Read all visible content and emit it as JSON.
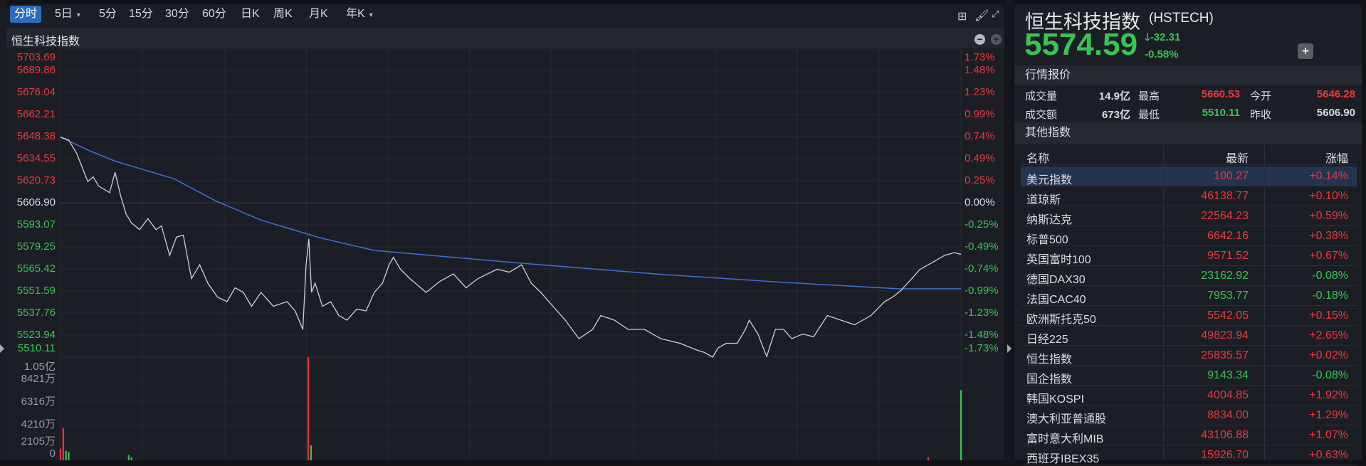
{
  "toolbar": {
    "timeframes": [
      {
        "label": "分时",
        "active": true
      },
      {
        "label": "5日",
        "dropdown": true
      },
      {
        "label": "5分"
      },
      {
        "label": "15分"
      },
      {
        "label": "30分"
      },
      {
        "label": "60分"
      },
      {
        "label": "日K"
      },
      {
        "label": "周K"
      },
      {
        "label": "月K"
      },
      {
        "label": "年K",
        "dropdown": true
      }
    ],
    "icons": [
      "grid-layout-icon",
      "brush-icon",
      "fullscreen-icon"
    ]
  },
  "chart": {
    "title": "恒生科技指数",
    "zoom_icons": [
      "zoom-out-icon",
      "zoom-in-icon"
    ]
  },
  "colors": {
    "up": "#e8383d",
    "down": "#38c452",
    "price_line": "#d0d0d4",
    "avg_line": "#3f6fd0",
    "background": "#1c1e26"
  },
  "chart_data": [
    {
      "type": "line",
      "name": "price",
      "prev_close": 5606.9,
      "y_ticks": [
        "5703.69",
        "5689.86",
        "5676.04",
        "5662.21",
        "5648.38",
        "5634.55",
        "5620.73",
        "5606.90",
        "5593.07",
        "5579.25",
        "5565.42",
        "5551.59",
        "5537.76",
        "5523.94",
        "5510.11"
      ],
      "y_tick_values": [
        5703.69,
        5689.86,
        5676.04,
        5662.21,
        5648.38,
        5634.55,
        5620.73,
        5606.9,
        5593.07,
        5579.25,
        5565.42,
        5551.59,
        5537.76,
        5523.94,
        5510.11
      ],
      "pct_ticks": [
        "1.73%",
        "1.48%",
        "1.23%",
        "0.99%",
        "0.74%",
        "0.49%",
        "0.25%",
        "0.00%",
        "-0.25%",
        "-0.49%",
        "-0.74%",
        "-0.99%",
        "-1.23%",
        "-1.48%",
        "-1.73%"
      ],
      "ylim": [
        5510.11,
        5703.69
      ],
      "xlim": [
        0,
        330
      ],
      "price": [
        [
          0,
          5648
        ],
        [
          3,
          5646.3
        ],
        [
          6,
          5637.6
        ],
        [
          10,
          5620.2
        ],
        [
          12,
          5623.1
        ],
        [
          14,
          5617.3
        ],
        [
          18,
          5613.3
        ],
        [
          20,
          5626
        ],
        [
          22,
          5611.5
        ],
        [
          24,
          5600
        ],
        [
          26,
          5594.2
        ],
        [
          29,
          5590.1
        ],
        [
          32,
          5597
        ],
        [
          35,
          5590
        ],
        [
          37,
          5592.4
        ],
        [
          40,
          5573.9
        ],
        [
          42.5,
          5585.4
        ],
        [
          45,
          5586.6
        ],
        [
          48,
          5559.4
        ],
        [
          51,
          5568
        ],
        [
          54,
          5556.5
        ],
        [
          57.5,
          5547.8
        ],
        [
          61,
          5544.9
        ],
        [
          64,
          5553.6
        ],
        [
          67,
          5550.7
        ],
        [
          70,
          5542
        ],
        [
          73.5,
          5550.7
        ],
        [
          78,
          5542
        ],
        [
          83,
          5544.9
        ],
        [
          86,
          5539.1
        ],
        [
          88.8,
          5527.5
        ],
        [
          90,
          5568
        ],
        [
          91,
          5584.3
        ],
        [
          92,
          5550.7
        ],
        [
          93.3,
          5556.5
        ],
        [
          96,
          5542
        ],
        [
          99,
          5544.9
        ],
        [
          102,
          5536.2
        ],
        [
          105,
          5533.3
        ],
        [
          108.6,
          5540.3
        ],
        [
          112,
          5539.1
        ],
        [
          115,
          5550.7
        ],
        [
          118,
          5556.5
        ],
        [
          120.4,
          5568
        ],
        [
          122,
          5572.7
        ],
        [
          124.6,
          5565.2
        ],
        [
          128,
          5559.4
        ],
        [
          134,
          5550.7
        ],
        [
          139,
          5557.6
        ],
        [
          144,
          5562.3
        ],
        [
          148.6,
          5553.6
        ],
        [
          153,
          5559.4
        ],
        [
          160,
          5565.2
        ],
        [
          164.5,
          5563.4
        ],
        [
          169,
          5568
        ],
        [
          172.5,
          5556.5
        ],
        [
          176,
          5550.7
        ],
        [
          180.5,
          5542
        ],
        [
          185,
          5533.3
        ],
        [
          190,
          5521.7
        ],
        [
          195,
          5527.5
        ],
        [
          198,
          5536.2
        ],
        [
          203,
          5533.3
        ],
        [
          208,
          5527.5
        ],
        [
          214,
          5527.5
        ],
        [
          220,
          5521.7
        ],
        [
          227,
          5518.8
        ],
        [
          233,
          5514.7
        ],
        [
          236,
          5513
        ],
        [
          239,
          5510.11
        ],
        [
          241,
          5515.9
        ],
        [
          244,
          5518.8
        ],
        [
          248,
          5518.8
        ],
        [
          251,
          5527.5
        ],
        [
          252.4,
          5533.3
        ],
        [
          255.6,
          5524.6
        ],
        [
          258.8,
          5510.5
        ],
        [
          262,
          5527.5
        ],
        [
          265,
          5527.5
        ],
        [
          268,
          5521.7
        ],
        [
          272,
          5524.6
        ],
        [
          276,
          5522.9
        ],
        [
          281,
          5536.2
        ],
        [
          286,
          5533.3
        ],
        [
          291,
          5530.4
        ],
        [
          297,
          5536.2
        ],
        [
          302,
          5544.9
        ],
        [
          305,
          5547.8
        ],
        [
          308,
          5551.9
        ],
        [
          312,
          5559.4
        ],
        [
          315,
          5565.2
        ],
        [
          318,
          5568
        ],
        [
          321,
          5570.9
        ],
        [
          324,
          5573.9
        ],
        [
          327.6,
          5575.6
        ],
        [
          330,
          5574.59
        ]
      ],
      "average": [
        [
          0,
          5648
        ],
        [
          10,
          5640
        ],
        [
          20,
          5633
        ],
        [
          41.5,
          5622
        ],
        [
          57,
          5608
        ],
        [
          73.5,
          5596
        ],
        [
          95,
          5585
        ],
        [
          115,
          5577
        ],
        [
          169,
          5569
        ],
        [
          220,
          5562
        ],
        [
          265,
          5557
        ],
        [
          307,
          5553
        ],
        [
          330,
          5553
        ]
      ]
    },
    {
      "type": "bar",
      "name": "volume",
      "y_ticks": [
        "1.05亿",
        "8421万",
        "6316万",
        "4210万",
        "2105万",
        "0"
      ],
      "y_tick_values": [
        10526,
        8421,
        6316,
        4210,
        2105,
        0
      ],
      "unit": "万",
      "bars": [
        [
          0,
          2000,
          "up"
        ],
        [
          1,
          3900,
          "up"
        ],
        [
          2,
          1800,
          "down"
        ],
        [
          3,
          1700,
          "down"
        ],
        [
          4,
          900,
          "down"
        ],
        [
          5,
          800,
          "up"
        ],
        [
          6,
          850,
          "down"
        ],
        [
          7,
          800,
          "up"
        ],
        [
          8,
          700,
          "down"
        ],
        [
          9,
          300,
          "down"
        ],
        [
          10,
          600,
          "down"
        ],
        [
          11,
          600,
          "down"
        ],
        [
          12,
          900,
          "down"
        ],
        [
          13,
          400,
          "up"
        ],
        [
          14,
          150,
          "down"
        ],
        [
          15,
          500,
          "down"
        ],
        [
          16,
          700,
          "down"
        ],
        [
          17,
          350,
          "up"
        ],
        [
          18,
          200,
          "down"
        ],
        [
          19,
          300,
          "up"
        ],
        [
          20,
          250,
          "up"
        ],
        [
          22,
          700,
          "down"
        ],
        [
          23,
          500,
          "down"
        ],
        [
          25,
          1400,
          "down"
        ],
        [
          26,
          1200,
          "down"
        ],
        [
          28,
          300,
          "up"
        ],
        [
          29,
          450,
          "down"
        ],
        [
          31,
          250,
          "up"
        ],
        [
          33,
          200,
          "up"
        ],
        [
          36,
          150,
          "down"
        ],
        [
          40,
          200,
          "down"
        ],
        [
          46,
          600,
          "down"
        ],
        [
          48,
          400,
          "up"
        ],
        [
          50,
          200,
          "up"
        ],
        [
          60,
          200,
          "down"
        ],
        [
          62,
          300,
          "down"
        ],
        [
          64,
          350,
          "down"
        ],
        [
          70,
          700,
          "up"
        ],
        [
          90.8,
          10450,
          "up"
        ],
        [
          91.8,
          2300,
          "down"
        ],
        [
          93,
          600,
          "down"
        ],
        [
          95,
          300,
          "up"
        ],
        [
          96,
          550,
          "up"
        ],
        [
          98,
          200,
          "down"
        ],
        [
          108,
          500,
          "down"
        ],
        [
          112,
          300,
          "up"
        ],
        [
          115,
          200,
          "up"
        ],
        [
          118,
          350,
          "up"
        ],
        [
          120,
          250,
          "down"
        ],
        [
          135,
          150,
          "up"
        ],
        [
          160,
          200,
          "down"
        ],
        [
          185,
          100,
          "up"
        ],
        [
          200,
          250,
          "up"
        ],
        [
          215,
          500,
          "down"
        ],
        [
          232,
          300,
          "down"
        ],
        [
          250,
          150,
          "up"
        ],
        [
          270,
          250,
          "down"
        ],
        [
          285,
          300,
          "up"
        ],
        [
          300,
          350,
          "up"
        ],
        [
          312,
          500,
          "up"
        ],
        [
          316,
          300,
          "down"
        ],
        [
          318,
          1200,
          "up"
        ],
        [
          319,
          350,
          "down"
        ],
        [
          320,
          250,
          "up"
        ],
        [
          321,
          300,
          "up"
        ],
        [
          322,
          300,
          "up"
        ],
        [
          323,
          350,
          "up"
        ],
        [
          324,
          450,
          "up"
        ],
        [
          325,
          300,
          "up"
        ],
        [
          326,
          500,
          "up"
        ],
        [
          327,
          650,
          "up"
        ],
        [
          328,
          700,
          "down"
        ],
        [
          329,
          250,
          "up"
        ],
        [
          330,
          7400,
          "down"
        ]
      ]
    }
  ],
  "quote": {
    "name": "恒生科技指数",
    "code": "(HSTECH)",
    "price": "5574.59",
    "change": "-32.31",
    "change_pct": "-0.58%",
    "arrow_icon": "arrow-down-icon",
    "add_label": "+"
  },
  "market": {
    "title": "行情报价",
    "volume_label": "成交量",
    "volume": "14.9亿",
    "high_label": "最高",
    "high": "5660.53",
    "open_label": "今开",
    "open": "5646.28",
    "turnover_label": "成交额",
    "turnover": "673亿",
    "low_label": "最低",
    "low": "5510.11",
    "prev_close_label": "昨收",
    "prev_close": "5606.90"
  },
  "others": {
    "title": "其他指数",
    "headers": [
      "名称",
      "最新",
      "涨幅"
    ],
    "rows": [
      {
        "name": "美元指数",
        "last": "100.27",
        "chg": "+0.14%",
        "dir": "up",
        "selected": true
      },
      {
        "name": "道琼斯",
        "last": "46138.77",
        "chg": "+0.10%",
        "dir": "up"
      },
      {
        "name": "纳斯达克",
        "last": "22564.23",
        "chg": "+0.59%",
        "dir": "up"
      },
      {
        "name": "标普500",
        "last": "6642.16",
        "chg": "+0.38%",
        "dir": "up"
      },
      {
        "name": "英国富时100",
        "last": "9571.52",
        "chg": "+0.67%",
        "dir": "up"
      },
      {
        "name": "德国DAX30",
        "last": "23162.92",
        "chg": "-0.08%",
        "dir": "down"
      },
      {
        "name": "法国CAC40",
        "last": "7953.77",
        "chg": "-0.18%",
        "dir": "down"
      },
      {
        "name": "欧洲斯托克50",
        "last": "5542.05",
        "chg": "+0.15%",
        "dir": "up"
      },
      {
        "name": "日经225",
        "last": "49823.94",
        "chg": "+2.65%",
        "dir": "up"
      },
      {
        "name": "恒生指数",
        "last": "25835.57",
        "chg": "+0.02%",
        "dir": "up"
      },
      {
        "name": "国企指数",
        "last": "9143.34",
        "chg": "-0.08%",
        "dir": "down"
      },
      {
        "name": "韩国KOSPI",
        "last": "4004.85",
        "chg": "+1.92%",
        "dir": "up"
      },
      {
        "name": "澳大利亚普通股",
        "last": "8834.00",
        "chg": "+1.29%",
        "dir": "up"
      },
      {
        "name": "富时意大利MIB",
        "last": "43106.88",
        "chg": "+1.07%",
        "dir": "up"
      },
      {
        "name": "西班牙IBEX35",
        "last": "15926.70",
        "chg": "+0.63%",
        "dir": "up"
      }
    ]
  }
}
